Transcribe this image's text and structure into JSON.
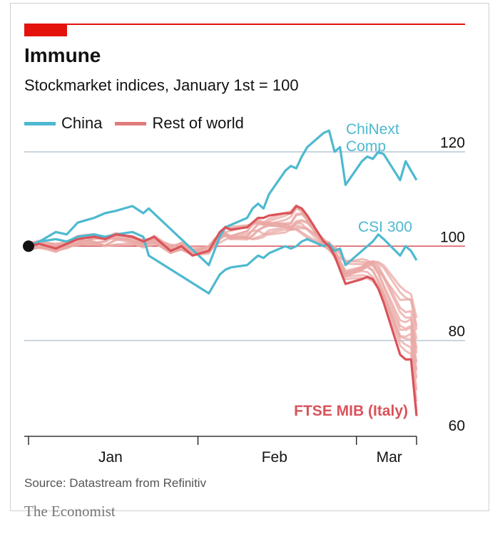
{
  "header": {
    "title": "Immune",
    "subtitle": "Stockmarket indices, January 1st = 100"
  },
  "legend": [
    {
      "label": "China",
      "color": "#4db9d0"
    },
    {
      "label": "Rest of world",
      "color": "#e07b7b"
    }
  ],
  "footer": {
    "source": "Source: Datastream from Refinitiv",
    "brand": "The Economist"
  },
  "colors": {
    "accent_red": "#e3120b",
    "china": "#4db9d0",
    "rest_of_world": "#eaa8a4",
    "italy": "#d9535a",
    "gridline": "#b8c7d3",
    "baseline": "#d9535a"
  },
  "chart_data": {
    "type": "line",
    "x_axis": {
      "labels": [
        "Jan",
        "Feb",
        "Mar"
      ],
      "range": [
        "2020-01-01",
        "2020-03-12"
      ]
    },
    "y_axis": {
      "ticks": [
        60,
        80,
        100,
        120
      ],
      "range": [
        60,
        128
      ]
    },
    "annotations": {
      "chinext": "ChiNext\nComp",
      "csi300": "CSI 300",
      "ftse": "FTSE MIB (Italy)"
    },
    "series": [
      {
        "name": "ChiNext Comp",
        "group": "China",
        "points": [
          [
            "2020-01-01",
            100
          ],
          [
            "2020-01-03",
            101
          ],
          [
            "2020-01-06",
            103
          ],
          [
            "2020-01-08",
            102.5
          ],
          [
            "2020-01-10",
            105
          ],
          [
            "2020-01-13",
            106
          ],
          [
            "2020-01-15",
            107
          ],
          [
            "2020-01-17",
            107.5
          ],
          [
            "2020-01-20",
            108.5
          ],
          [
            "2020-01-22",
            107
          ],
          [
            "2020-01-23",
            108
          ],
          [
            "2020-02-03",
            96
          ],
          [
            "2020-02-04",
            99
          ],
          [
            "2020-02-05",
            102
          ],
          [
            "2020-02-06",
            104
          ],
          [
            "2020-02-07",
            104.5
          ],
          [
            "2020-02-10",
            106
          ],
          [
            "2020-02-11",
            108
          ],
          [
            "2020-02-12",
            109
          ],
          [
            "2020-02-13",
            108
          ],
          [
            "2020-02-14",
            111
          ],
          [
            "2020-02-17",
            116
          ],
          [
            "2020-02-18",
            117
          ],
          [
            "2020-02-19",
            116.5
          ],
          [
            "2020-02-20",
            119
          ],
          [
            "2020-02-21",
            121
          ],
          [
            "2020-02-24",
            124
          ],
          [
            "2020-02-25",
            124.5
          ],
          [
            "2020-02-26",
            120
          ],
          [
            "2020-02-27",
            121
          ],
          [
            "2020-02-28",
            113
          ],
          [
            "2020-03-02",
            118
          ],
          [
            "2020-03-03",
            119
          ],
          [
            "2020-03-04",
            118.5
          ],
          [
            "2020-03-05",
            120
          ],
          [
            "2020-03-06",
            119.5
          ],
          [
            "2020-03-09",
            114
          ],
          [
            "2020-03-10",
            118
          ],
          [
            "2020-03-11",
            116
          ],
          [
            "2020-03-12",
            114
          ]
        ]
      },
      {
        "name": "CSI 300",
        "group": "China",
        "points": [
          [
            "2020-01-01",
            100
          ],
          [
            "2020-01-03",
            101
          ],
          [
            "2020-01-06",
            101.5
          ],
          [
            "2020-01-08",
            101
          ],
          [
            "2020-01-10",
            102
          ],
          [
            "2020-01-13",
            102.5
          ],
          [
            "2020-01-15",
            102
          ],
          [
            "2020-01-17",
            102.5
          ],
          [
            "2020-01-20",
            103
          ],
          [
            "2020-01-22",
            102
          ],
          [
            "2020-01-23",
            98
          ],
          [
            "2020-02-03",
            90
          ],
          [
            "2020-02-04",
            92
          ],
          [
            "2020-02-05",
            94
          ],
          [
            "2020-02-06",
            95
          ],
          [
            "2020-02-07",
            95.5
          ],
          [
            "2020-02-10",
            96
          ],
          [
            "2020-02-11",
            97
          ],
          [
            "2020-02-12",
            98
          ],
          [
            "2020-02-13",
            97.5
          ],
          [
            "2020-02-14",
            98.5
          ],
          [
            "2020-02-17",
            100
          ],
          [
            "2020-02-18",
            99.5
          ],
          [
            "2020-02-19",
            100
          ],
          [
            "2020-02-20",
            101
          ],
          [
            "2020-02-21",
            101.5
          ],
          [
            "2020-02-24",
            100
          ],
          [
            "2020-02-25",
            100.5
          ],
          [
            "2020-02-26",
            99
          ],
          [
            "2020-02-27",
            99.5
          ],
          [
            "2020-02-28",
            96
          ],
          [
            "2020-03-02",
            99
          ],
          [
            "2020-03-03",
            100
          ],
          [
            "2020-03-04",
            101
          ],
          [
            "2020-03-05",
            102.5
          ],
          [
            "2020-03-06",
            101.5
          ],
          [
            "2020-03-09",
            98
          ],
          [
            "2020-03-10",
            100
          ],
          [
            "2020-03-11",
            99
          ],
          [
            "2020-03-12",
            97
          ]
        ]
      },
      {
        "name": "FTSE MIB (Italy)",
        "group": "Rest of world",
        "points": [
          [
            "2020-01-01",
            100
          ],
          [
            "2020-01-03",
            100.5
          ],
          [
            "2020-01-06",
            99.5
          ],
          [
            "2020-01-08",
            100.5
          ],
          [
            "2020-01-10",
            101.5
          ],
          [
            "2020-01-13",
            102
          ],
          [
            "2020-01-15",
            101.5
          ],
          [
            "2020-01-17",
            102.5
          ],
          [
            "2020-01-20",
            102
          ],
          [
            "2020-01-22",
            101
          ],
          [
            "2020-01-24",
            102
          ],
          [
            "2020-01-27",
            99
          ],
          [
            "2020-01-29",
            100
          ],
          [
            "2020-01-31",
            98
          ],
          [
            "2020-02-03",
            99
          ],
          [
            "2020-02-04",
            101
          ],
          [
            "2020-02-05",
            103
          ],
          [
            "2020-02-06",
            104
          ],
          [
            "2020-02-07",
            103.5
          ],
          [
            "2020-02-10",
            104
          ],
          [
            "2020-02-11",
            105
          ],
          [
            "2020-02-12",
            106
          ],
          [
            "2020-02-13",
            106
          ],
          [
            "2020-02-14",
            106.5
          ],
          [
            "2020-02-17",
            107
          ],
          [
            "2020-02-18",
            107
          ],
          [
            "2020-02-19",
            108.5
          ],
          [
            "2020-02-20",
            108
          ],
          [
            "2020-02-21",
            106.5
          ],
          [
            "2020-02-24",
            101
          ],
          [
            "2020-02-25",
            100
          ],
          [
            "2020-02-26",
            98
          ],
          [
            "2020-02-27",
            95
          ],
          [
            "2020-02-28",
            92
          ],
          [
            "2020-03-02",
            93
          ],
          [
            "2020-03-03",
            93.5
          ],
          [
            "2020-03-04",
            93
          ],
          [
            "2020-03-05",
            91
          ],
          [
            "2020-03-06",
            88
          ],
          [
            "2020-03-09",
            77
          ],
          [
            "2020-03-10",
            76
          ],
          [
            "2020-03-11",
            76
          ],
          [
            "2020-03-12",
            64
          ]
        ]
      }
    ],
    "rest_of_world_note": "faint red lines: other national indices"
  }
}
